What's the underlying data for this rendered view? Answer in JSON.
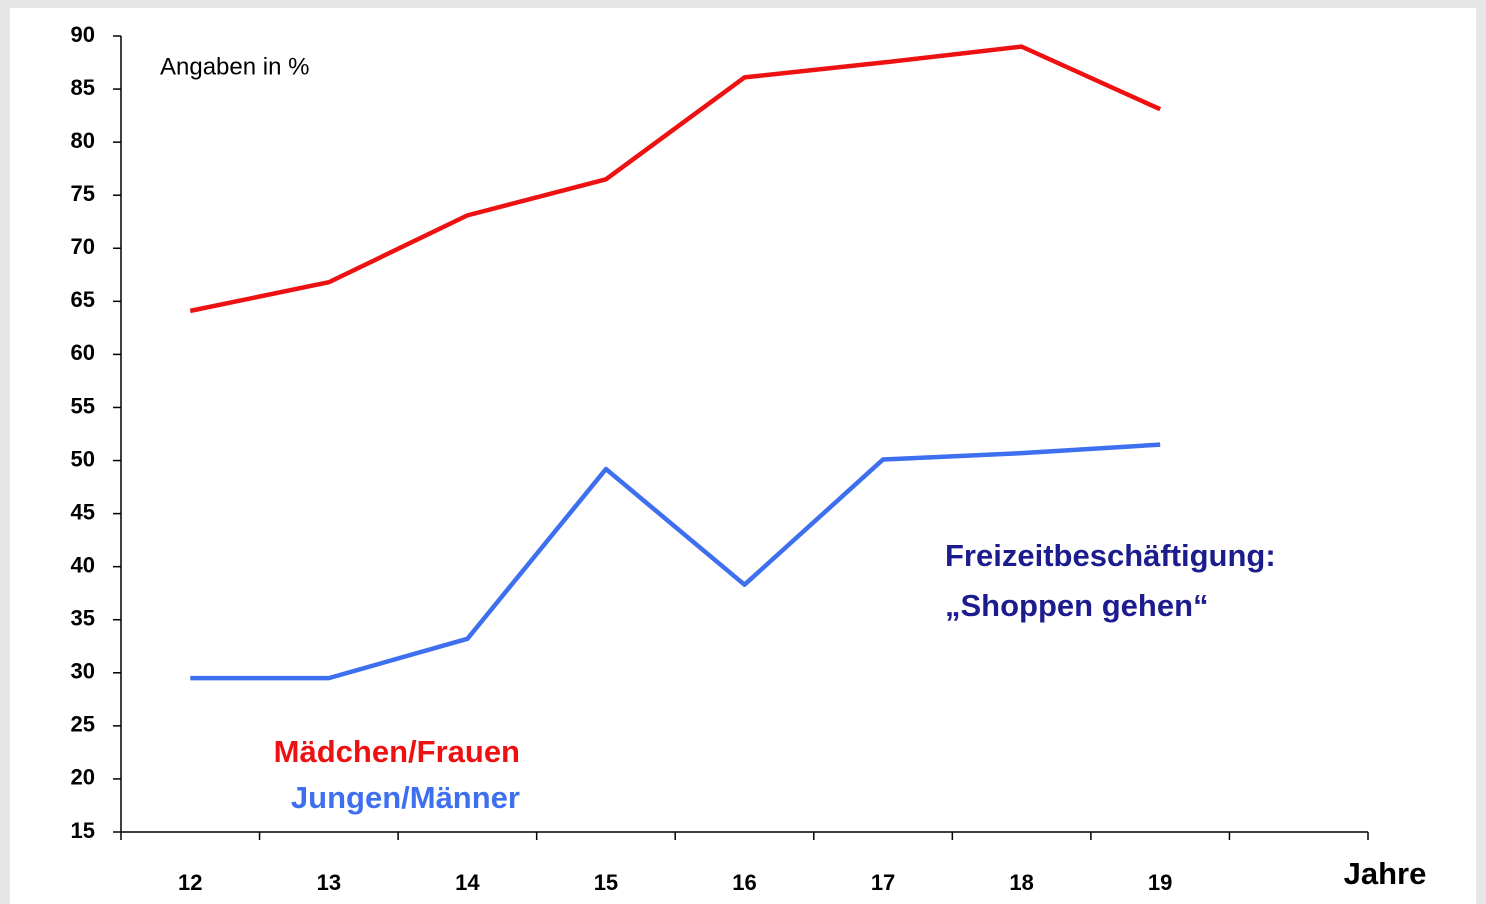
{
  "chart_data": {
    "type": "line",
    "annotations": [
      "Angaben in %",
      "Freizeitbeschäftigung:",
      "„Shoppen gehen“"
    ],
    "x_label": "Jahre",
    "categories": [
      "12",
      "13",
      "14",
      "15",
      "16",
      "17",
      "18",
      "19",
      null
    ],
    "series": [
      {
        "name": "Mädchen/Frauen",
        "color": "#ee1111",
        "values": [
          64.1,
          66.8,
          73.1,
          76.5,
          86.1,
          87.5,
          89,
          83.1,
          null
        ]
      },
      {
        "name": "Jungen/Männer",
        "color": "#3d6fee",
        "values": [
          29.5,
          29.5,
          33.2,
          49.2,
          38.3,
          50.1,
          50.7,
          51.5,
          null
        ]
      }
    ],
    "ylim": [
      15,
      90
    ],
    "yticks": [
      15,
      20,
      25,
      30,
      35,
      40,
      45,
      50,
      55,
      60,
      65,
      70,
      75,
      80,
      85,
      90
    ],
    "annotation_color": "#1c1c8e",
    "grid": false
  }
}
